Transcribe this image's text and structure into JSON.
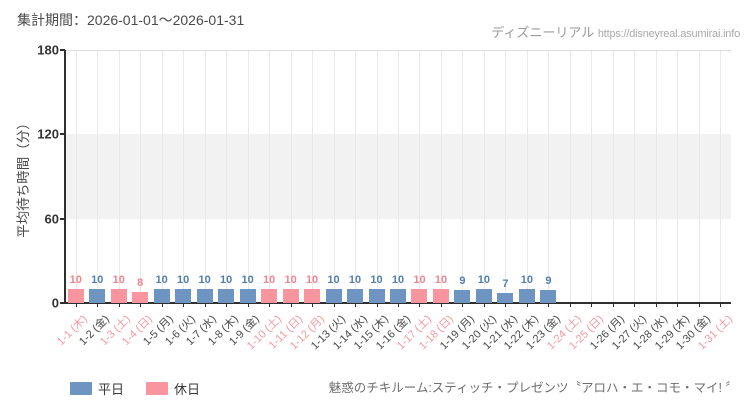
{
  "header": {
    "period_label": "集計期間：2026-01-01～2026-01-31",
    "watermark_name": "ディズニーリアル",
    "watermark_url": "https://disneyreal.asumirai.info"
  },
  "legend": {
    "weekday_label": "平日",
    "holiday_label": "休日"
  },
  "footer": {
    "attraction_name": "魅惑のチキルーム:スティッチ・プレゼンツ〝アロハ・エ・コモ・マイ! 〞"
  },
  "chart_data": {
    "type": "bar",
    "title": "",
    "xlabel": "",
    "ylabel": "平均待ち時間（分）",
    "ylim": [
      0,
      180
    ],
    "yticks": [
      0,
      60,
      120,
      180
    ],
    "shaded_band_y": [
      60,
      120
    ],
    "grid": "vertical",
    "legend_position": "bottom-left",
    "categories": [
      "1-1 (木)",
      "1-2 (金)",
      "1-3 (土)",
      "1-4 (日)",
      "1-5 (月)",
      "1-6 (火)",
      "1-7 (水)",
      "1-8 (木)",
      "1-9 (金)",
      "1-10 (土)",
      "1-11 (日)",
      "1-12 (月)",
      "1-13 (火)",
      "1-14 (水)",
      "1-15 (木)",
      "1-16 (金)",
      "1-17 (土)",
      "1-18 (日)",
      "1-19 (月)",
      "1-20 (火)",
      "1-21 (水)",
      "1-22 (木)",
      "1-23 (金)",
      "1-24 (土)",
      "1-25 (日)",
      "1-26 (月)",
      "1-27 (火)",
      "1-28 (水)",
      "1-29 (木)",
      "1-30 (金)",
      "1-31 (土)"
    ],
    "day_types": [
      "holiday",
      "weekday",
      "holiday",
      "holiday",
      "weekday",
      "weekday",
      "weekday",
      "weekday",
      "weekday",
      "holiday",
      "holiday",
      "holiday",
      "weekday",
      "weekday",
      "weekday",
      "weekday",
      "holiday",
      "holiday",
      "weekday",
      "weekday",
      "weekday",
      "weekday",
      "weekday",
      "holiday",
      "holiday",
      "weekday",
      "weekday",
      "weekday",
      "weekday",
      "weekday",
      "holiday"
    ],
    "values": [
      10,
      10,
      10,
      8,
      10,
      10,
      10,
      10,
      10,
      10,
      10,
      10,
      10,
      10,
      10,
      10,
      10,
      10,
      9,
      10,
      7,
      10,
      9,
      null,
      null,
      null,
      null,
      null,
      null,
      null,
      null
    ],
    "colors": {
      "weekday_bar": "#6e95c1",
      "holiday_bar": "#f8959f",
      "weekday_value_text": "#527fae",
      "holiday_value_text": "#f2848f",
      "weekday_tick_text": "#484848",
      "holiday_tick_text": "#f49aa2",
      "band_fill": "#f2f2f2",
      "gridline": "#e9e9e9",
      "axis": "#2f2f2f"
    }
  }
}
